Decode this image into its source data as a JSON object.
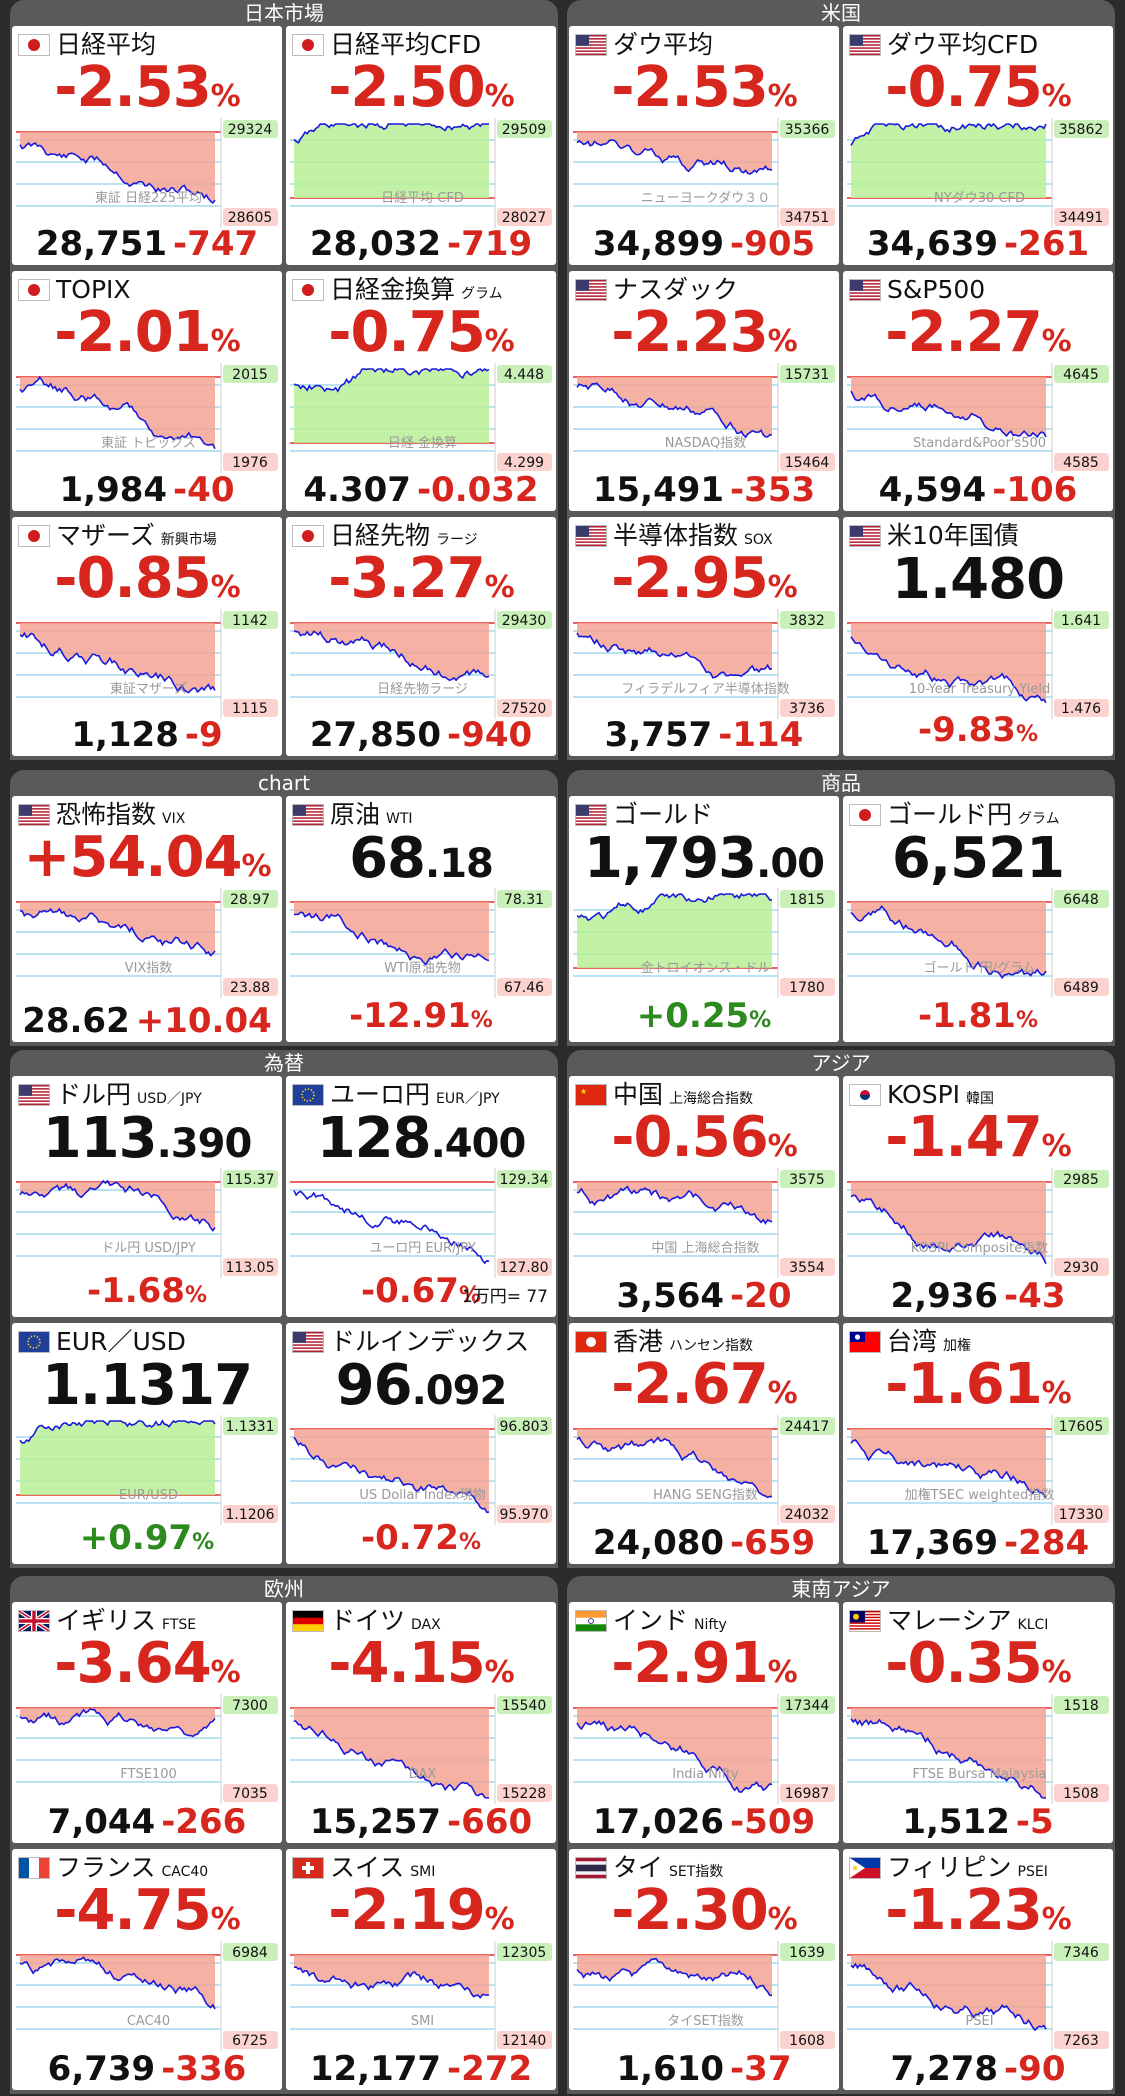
{
  "sections": [
    {
      "title": "日本市場",
      "tiles": [
        {
          "name": "日経平均",
          "sub": "",
          "flag": "jp",
          "pct": "-2.53",
          "price": "28,751",
          "chg": "-747",
          "chartLabel": "東証 日経225平均",
          "hi": "29324",
          "lo": "28605",
          "fill": "red"
        },
        {
          "name": "日経平均CFD",
          "sub": "",
          "flag": "jp",
          "pct": "-2.50",
          "price": "28,032",
          "chg": "-719",
          "chartLabel": "日経平均 CFD",
          "hi": "29509",
          "lo": "28027",
          "fill": "green"
        },
        {
          "name": "TOPIX",
          "sub": "",
          "flag": "jp",
          "pct": "-2.01",
          "price": "1,984",
          "chg": "-40",
          "chartLabel": "東証 トピックス",
          "hi": "2015",
          "lo": "1976",
          "fill": "red"
        },
        {
          "name": "日経金換算",
          "sub": "グラム",
          "flag": "jp",
          "pct": "-0.75",
          "price": "4.307",
          "chg": "-0.032",
          "chartLabel": "日経 金換算",
          "hi": "4.448",
          "lo": "4.299",
          "fill": "green"
        },
        {
          "name": "マザーズ",
          "sub": "新興市場",
          "flag": "jp",
          "pct": "-0.85",
          "price": "1,128",
          "chg": "-9",
          "chartLabel": "東証マザーズ",
          "hi": "1142",
          "lo": "1115",
          "fill": "red"
        },
        {
          "name": "日経先物",
          "sub": "ラージ",
          "flag": "jp",
          "pct": "-3.27",
          "price": "27,850",
          "chg": "-940",
          "chartLabel": "日経先物ラージ",
          "hi": "29430",
          "lo": "27520",
          "fill": "red"
        }
      ]
    },
    {
      "title": "米国",
      "tiles": [
        {
          "name": "ダウ平均",
          "sub": "",
          "flag": "us",
          "pct": "-2.53",
          "price": "34,899",
          "chg": "-905",
          "chartLabel": "ニューヨークダウ３０",
          "hi": "35366",
          "lo": "34751",
          "fill": "red"
        },
        {
          "name": "ダウ平均CFD",
          "sub": "",
          "flag": "us",
          "pct": "-0.75",
          "price": "34,639",
          "chg": "-261",
          "chartLabel": "NYダウ30 CFD",
          "hi": "35862",
          "lo": "34491",
          "fill": "green"
        },
        {
          "name": "ナスダック",
          "sub": "",
          "flag": "us",
          "pct": "-2.23",
          "price": "15,491",
          "chg": "-353",
          "chartLabel": "NASDAQ指数",
          "hi": "15731",
          "lo": "15464",
          "fill": "red"
        },
        {
          "name": "S&P500",
          "sub": "",
          "flag": "us",
          "pct": "-2.27",
          "price": "4,594",
          "chg": "-106",
          "chartLabel": "Standard&Poor's500",
          "hi": "4645",
          "lo": "4585",
          "fill": "red"
        },
        {
          "name": "半導体指数",
          "sub": "SOX",
          "flag": "us",
          "pct": "-2.95",
          "price": "3,757",
          "chg": "-114",
          "chartLabel": "フィラデルフィア半導体指数",
          "hi": "3832",
          "lo": "3736",
          "fill": "red"
        },
        {
          "name": "米10年国債",
          "sub": "",
          "flag": "us",
          "big": "1.480",
          "bigdec": "",
          "pctb": "-9.83",
          "chartLabel": "10-Year Treasury Yield",
          "hi": "1.641",
          "lo": "1.476",
          "fill": "red"
        }
      ]
    },
    {
      "title": "chart",
      "tiles": [
        {
          "name": "恐怖指数",
          "sub": "VIX",
          "flag": "us",
          "pct": "+54.04",
          "price": "28.62",
          "chg": "+10.04",
          "chartLabel": "VIX指数",
          "hi": "28.97",
          "lo": "23.88",
          "fill": "red",
          "upPct": true
        },
        {
          "name": "原油",
          "sub": "WTI",
          "flag": "us",
          "big": "68",
          "bigdec": ".18",
          "pctb": "-12.91",
          "chartLabel": "WTI原油先物",
          "hi": "78.31",
          "lo": "67.46",
          "fill": "red"
        }
      ]
    },
    {
      "title": "商品",
      "tiles": [
        {
          "name": "ゴールド",
          "sub": "",
          "flag": "us",
          "big": "1,793",
          "bigdec": ".00",
          "pctb": "+0.25",
          "pctUp": true,
          "chartLabel": "金トロイオンス・ドル",
          "hi": "1815",
          "lo": "1780",
          "fill": "green"
        },
        {
          "name": "ゴールド円",
          "sub": "グラム",
          "flag": "jp",
          "big": "6,521",
          "bigdec": "",
          "pctb": "-1.81",
          "chartLabel": "ゴールド 円/グラム",
          "hi": "6648",
          "lo": "6489",
          "fill": "red"
        }
      ]
    },
    {
      "title": "為替",
      "tiles": [
        {
          "name": "ドル円",
          "sub": "USD／JPY",
          "flag": "us",
          "big": "113",
          "bigdec": ".390",
          "pctb": "-1.68",
          "chartLabel": "ドル円 USD/JPY",
          "hi": "115.37",
          "lo": "113.05",
          "fill": "red"
        },
        {
          "name": "ユーロ円",
          "sub": "EUR／JPY",
          "flag": "eu",
          "big": "128",
          "bigdec": ".400",
          "pctb": "-0.67",
          "note": "1万円= 77",
          "chartLabel": "ユーロ円 EUR/JPY",
          "hi": "129.34",
          "lo": "127.80",
          "fill": "none"
        },
        {
          "name": "EUR／USD",
          "sub": "",
          "flag": "eu",
          "big": "1.1317",
          "bigdec": "",
          "pctb": "+0.97",
          "pctUp": true,
          "chartLabel": "EUR/USD",
          "hi": "1.1331",
          "lo": "1.1206",
          "fill": "green"
        },
        {
          "name": "ドルインデックス",
          "sub": "",
          "flag": "us",
          "big": "96",
          "bigdec": ".092",
          "pctb": "-0.72",
          "chartLabel": "US Dollar Index現物",
          "hi": "96.803",
          "lo": "95.970",
          "fill": "red"
        }
      ]
    },
    {
      "title": "アジア",
      "tiles": [
        {
          "name": "中国",
          "sub": "上海総合指数",
          "flag": "cn",
          "pct": "-0.56",
          "price": "3,564",
          "chg": "-20",
          "chartLabel": "中国 上海総合指数",
          "hi": "3575",
          "lo": "3554",
          "fill": "red"
        },
        {
          "name": "KOSPI",
          "sub": "韓国",
          "flag": "kr",
          "pct": "-1.47",
          "price": "2,936",
          "chg": "-43",
          "chartLabel": "KOSPI Composite指数",
          "hi": "2985",
          "lo": "2930",
          "fill": "red"
        },
        {
          "name": "香港",
          "sub": "ハンセン指数",
          "flag": "hk",
          "pct": "-2.67",
          "price": "24,080",
          "chg": "-659",
          "chartLabel": "HANG SENG指数",
          "hi": "24417",
          "lo": "24032",
          "fill": "red"
        },
        {
          "name": "台湾",
          "sub": "加権",
          "flag": "tw",
          "pct": "-1.61",
          "price": "17,369",
          "chg": "-284",
          "chartLabel": "加権TSEC weighted指数",
          "hi": "17605",
          "lo": "17330",
          "fill": "red"
        }
      ]
    },
    {
      "title": "欧州",
      "tiles": [
        {
          "name": "イギリス",
          "sub": "FTSE",
          "flag": "gb",
          "pct": "-3.64",
          "price": "7,044",
          "chg": "-266",
          "chartLabel": "FTSE100",
          "hi": "7300",
          "lo": "7035",
          "fill": "red"
        },
        {
          "name": "ドイツ",
          "sub": "DAX",
          "flag": "de",
          "pct": "-4.15",
          "price": "15,257",
          "chg": "-660",
          "chartLabel": "DAX",
          "hi": "15540",
          "lo": "15228",
          "fill": "red"
        },
        {
          "name": "フランス",
          "sub": "CAC40",
          "flag": "fr",
          "pct": "-4.75",
          "price": "6,739",
          "chg": "-336",
          "chartLabel": "CAC40",
          "hi": "6984",
          "lo": "6725",
          "fill": "red"
        },
        {
          "name": "スイス",
          "sub": "SMI",
          "flag": "ch",
          "pct": "-2.19",
          "price": "12,177",
          "chg": "-272",
          "chartLabel": "SMI",
          "hi": "12305",
          "lo": "12140",
          "fill": "red"
        }
      ]
    },
    {
      "title": "東南アジア",
      "tiles": [
        {
          "name": "インド",
          "sub": "Nifty",
          "flag": "in",
          "pct": "-2.91",
          "price": "17,026",
          "chg": "-509",
          "chartLabel": "India Nifty",
          "hi": "17344",
          "lo": "16987",
          "fill": "red"
        },
        {
          "name": "マレーシア",
          "sub": "KLCI",
          "flag": "my",
          "pct": "-0.35",
          "price": "1,512",
          "chg": "-5",
          "chartLabel": "FTSE Bursa Malaysia",
          "hi": "1518",
          "lo": "1508",
          "fill": "red"
        },
        {
          "name": "タイ",
          "sub": "SET指数",
          "flag": "th",
          "pct": "-2.30",
          "price": "1,610",
          "chg": "-37",
          "chartLabel": "タイSET指数",
          "hi": "1639",
          "lo": "1608",
          "fill": "red"
        },
        {
          "name": "フィリピン",
          "sub": "PSEI",
          "flag": "ph",
          "pct": "-1.23",
          "price": "7,278",
          "chg": "-90",
          "chartLabel": "PSEI",
          "hi": "7346",
          "lo": "7263",
          "fill": "red"
        }
      ]
    }
  ]
}
